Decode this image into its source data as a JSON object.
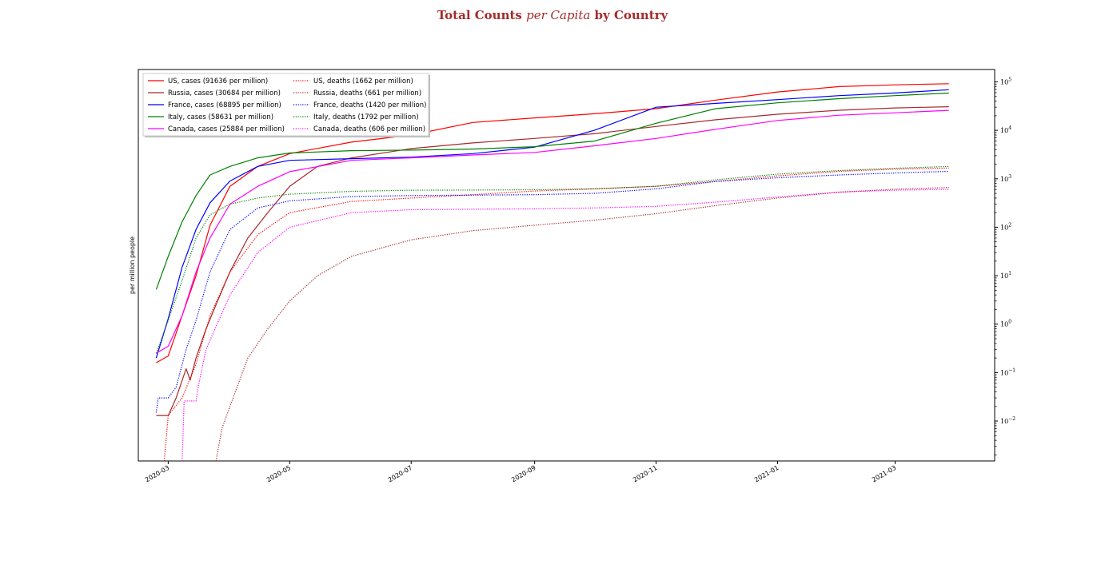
{
  "chart_data": {
    "type": "line",
    "title_parts": [
      "Total Counts ",
      "per Capita",
      " by Country"
    ],
    "ylabel": "per million people",
    "yscale": "log",
    "y_axis_side": "right",
    "ylim": [
      0.0015,
      180000
    ],
    "xlim": [
      "2020-02-15",
      "2021-04-20"
    ],
    "x_ticks": [
      "2020-03",
      "2020-05",
      "2020-07",
      "2020-09",
      "2020-11",
      "2021-01",
      "2021-03"
    ],
    "x_tick_dates": [
      "2020-03-01",
      "2020-05-01",
      "2020-07-01",
      "2020-09-01",
      "2020-11-01",
      "2021-01-01",
      "2021-03-01"
    ],
    "y_ticks": [
      {
        "value": 0.01,
        "base": "10",
        "exp": "−2"
      },
      {
        "value": 0.1,
        "base": "10",
        "exp": "−1"
      },
      {
        "value": 1,
        "base": "10",
        "exp": "0"
      },
      {
        "value": 10,
        "base": "10",
        "exp": "1"
      },
      {
        "value": 100,
        "base": "10",
        "exp": "2"
      },
      {
        "value": 1000,
        "base": "10",
        "exp": "3"
      },
      {
        "value": 10000,
        "base": "10",
        "exp": "4"
      },
      {
        "value": 100000,
        "base": "10",
        "exp": "5"
      }
    ],
    "legend_position": "upper-left",
    "series": [
      {
        "name": "US, cases (91636 per million)",
        "color": "#ff0000",
        "style": "solid",
        "points": [
          [
            "2020-02-24",
            0.16
          ],
          [
            "2020-03-01",
            0.22
          ],
          [
            "2020-03-08",
            1.5
          ],
          [
            "2020-03-15",
            10
          ],
          [
            "2020-03-22",
            110
          ],
          [
            "2020-04-01",
            700
          ],
          [
            "2020-04-15",
            1800
          ],
          [
            "2020-05-01",
            3300
          ],
          [
            "2020-06-01",
            5700
          ],
          [
            "2020-07-01",
            8000
          ],
          [
            "2020-08-01",
            14500
          ],
          [
            "2020-09-01",
            18000
          ],
          [
            "2020-10-01",
            22000
          ],
          [
            "2020-11-01",
            28000
          ],
          [
            "2020-12-01",
            42000
          ],
          [
            "2021-01-01",
            62000
          ],
          [
            "2021-02-01",
            80000
          ],
          [
            "2021-03-01",
            87000
          ],
          [
            "2021-03-28",
            91636
          ]
        ]
      },
      {
        "name": "Russia, cases (30684 per million)",
        "color": "#a52a2a",
        "style": "solid",
        "points": [
          [
            "2020-02-24",
            0.013
          ],
          [
            "2020-03-01",
            0.013
          ],
          [
            "2020-03-05",
            0.03
          ],
          [
            "2020-03-10",
            0.12
          ],
          [
            "2020-03-12",
            0.07
          ],
          [
            "2020-03-15",
            0.2
          ],
          [
            "2020-03-20",
            0.8
          ],
          [
            "2020-03-25",
            2.5
          ],
          [
            "2020-04-01",
            12
          ],
          [
            "2020-04-10",
            60
          ],
          [
            "2020-04-20",
            200
          ],
          [
            "2020-05-01",
            700
          ],
          [
            "2020-05-15",
            1800
          ],
          [
            "2020-06-01",
            2700
          ],
          [
            "2020-07-01",
            4200
          ],
          [
            "2020-08-01",
            5500
          ],
          [
            "2020-09-01",
            6800
          ],
          [
            "2020-10-01",
            8500
          ],
          [
            "2020-11-01",
            12000
          ],
          [
            "2020-12-01",
            16500
          ],
          [
            "2021-01-01",
            21500
          ],
          [
            "2021-02-01",
            26000
          ],
          [
            "2021-03-01",
            29000
          ],
          [
            "2021-03-28",
            30684
          ]
        ]
      },
      {
        "name": "France, cases (68895 per million)",
        "color": "#0000ff",
        "style": "solid",
        "points": [
          [
            "2020-02-24",
            0.2
          ],
          [
            "2020-03-01",
            1.3
          ],
          [
            "2020-03-08",
            15
          ],
          [
            "2020-03-15",
            90
          ],
          [
            "2020-03-22",
            320
          ],
          [
            "2020-04-01",
            900
          ],
          [
            "2020-04-15",
            1800
          ],
          [
            "2020-05-01",
            2400
          ],
          [
            "2020-06-01",
            2600
          ],
          [
            "2020-07-01",
            2800
          ],
          [
            "2020-08-01",
            3300
          ],
          [
            "2020-09-01",
            4500
          ],
          [
            "2020-10-01",
            10000
          ],
          [
            "2020-11-01",
            30000
          ],
          [
            "2020-12-01",
            36000
          ],
          [
            "2021-01-01",
            43000
          ],
          [
            "2021-02-01",
            52000
          ],
          [
            "2021-03-01",
            59000
          ],
          [
            "2021-03-28",
            68895
          ]
        ]
      },
      {
        "name": "Italy, cases (58631 per million)",
        "color": "#008000",
        "style": "solid",
        "points": [
          [
            "2020-02-24",
            5.2
          ],
          [
            "2020-03-01",
            25
          ],
          [
            "2020-03-08",
            130
          ],
          [
            "2020-03-15",
            450
          ],
          [
            "2020-03-22",
            1200
          ],
          [
            "2020-04-01",
            1800
          ],
          [
            "2020-04-15",
            2700
          ],
          [
            "2020-05-01",
            3400
          ],
          [
            "2020-06-01",
            3800
          ],
          [
            "2020-07-01",
            3900
          ],
          [
            "2020-08-01",
            4100
          ],
          [
            "2020-09-01",
            4600
          ],
          [
            "2020-10-01",
            6000
          ],
          [
            "2020-11-01",
            14000
          ],
          [
            "2020-12-01",
            28000
          ],
          [
            "2021-01-01",
            37000
          ],
          [
            "2021-02-01",
            45000
          ],
          [
            "2021-03-01",
            52000
          ],
          [
            "2021-03-28",
            58631
          ]
        ]
      },
      {
        "name": "Canada, cases (25884 per million)",
        "color": "#ff00ff",
        "style": "solid",
        "points": [
          [
            "2020-02-24",
            0.25
          ],
          [
            "2020-03-01",
            0.35
          ],
          [
            "2020-03-08",
            1.5
          ],
          [
            "2020-03-15",
            12
          ],
          [
            "2020-03-22",
            60
          ],
          [
            "2020-04-01",
            300
          ],
          [
            "2020-04-15",
            700
          ],
          [
            "2020-05-01",
            1400
          ],
          [
            "2020-06-01",
            2400
          ],
          [
            "2020-07-01",
            2700
          ],
          [
            "2020-08-01",
            3100
          ],
          [
            "2020-09-01",
            3500
          ],
          [
            "2020-10-01",
            4800
          ],
          [
            "2020-11-01",
            6800
          ],
          [
            "2020-12-01",
            10500
          ],
          [
            "2021-01-01",
            16000
          ],
          [
            "2021-02-01",
            20500
          ],
          [
            "2021-03-01",
            23000
          ],
          [
            "2021-03-28",
            25884
          ]
        ]
      },
      {
        "name": "US, deaths (1662 per million)",
        "color": "#ff0000",
        "style": "dotted",
        "points": [
          [
            "2020-02-28",
            0.0015
          ],
          [
            "2020-03-01",
            0.013
          ],
          [
            "2020-03-08",
            0.03
          ],
          [
            "2020-03-15",
            0.15
          ],
          [
            "2020-03-22",
            1.5
          ],
          [
            "2020-04-01",
            12
          ],
          [
            "2020-04-15",
            70
          ],
          [
            "2020-05-01",
            200
          ],
          [
            "2020-06-01",
            340
          ],
          [
            "2020-07-01",
            400
          ],
          [
            "2020-08-01",
            470
          ],
          [
            "2020-09-01",
            560
          ],
          [
            "2020-10-01",
            620
          ],
          [
            "2020-11-01",
            700
          ],
          [
            "2020-12-01",
            880
          ],
          [
            "2021-01-01",
            1150
          ],
          [
            "2021-02-01",
            1420
          ],
          [
            "2021-03-01",
            1580
          ],
          [
            "2021-03-28",
            1662
          ]
        ]
      },
      {
        "name": "Russia, deaths (661 per million)",
        "color": "#a52a2a",
        "style": "dotted",
        "points": [
          [
            "2020-03-25",
            0.0015
          ],
          [
            "2020-03-28",
            0.007
          ],
          [
            "2020-04-01",
            0.02
          ],
          [
            "2020-04-10",
            0.2
          ],
          [
            "2020-04-20",
            0.8
          ],
          [
            "2020-05-01",
            3
          ],
          [
            "2020-05-15",
            10
          ],
          [
            "2020-06-01",
            25
          ],
          [
            "2020-07-01",
            55
          ],
          [
            "2020-08-01",
            85
          ],
          [
            "2020-09-01",
            110
          ],
          [
            "2020-10-01",
            140
          ],
          [
            "2020-11-01",
            190
          ],
          [
            "2020-12-01",
            280
          ],
          [
            "2021-01-01",
            400
          ],
          [
            "2021-02-01",
            530
          ],
          [
            "2021-03-01",
            610
          ],
          [
            "2021-03-28",
            661
          ]
        ]
      },
      {
        "name": "France, deaths (1420 per million)",
        "color": "#0000ff",
        "style": "dotted",
        "points": [
          [
            "2020-02-24",
            0.015
          ],
          [
            "2020-02-25",
            0.03
          ],
          [
            "2020-03-01",
            0.03
          ],
          [
            "2020-03-05",
            0.05
          ],
          [
            "2020-03-10",
            0.3
          ],
          [
            "2020-03-15",
            1.2
          ],
          [
            "2020-03-22",
            12
          ],
          [
            "2020-04-01",
            90
          ],
          [
            "2020-04-15",
            250
          ],
          [
            "2020-05-01",
            350
          ],
          [
            "2020-06-01",
            430
          ],
          [
            "2020-07-01",
            450
          ],
          [
            "2020-08-01",
            460
          ],
          [
            "2020-09-01",
            470
          ],
          [
            "2020-10-01",
            500
          ],
          [
            "2020-11-01",
            620
          ],
          [
            "2020-12-01",
            880
          ],
          [
            "2021-01-01",
            1050
          ],
          [
            "2021-02-01",
            1200
          ],
          [
            "2021-03-01",
            1320
          ],
          [
            "2021-03-28",
            1420
          ]
        ]
      },
      {
        "name": "Italy, deaths (1792 per million)",
        "color": "#008000",
        "style": "dotted",
        "points": [
          [
            "2020-02-24",
            0.25
          ],
          [
            "2020-03-01",
            1.2
          ],
          [
            "2020-03-08",
            8
          ],
          [
            "2020-03-15",
            60
          ],
          [
            "2020-03-22",
            180
          ],
          [
            "2020-04-01",
            300
          ],
          [
            "2020-04-15",
            400
          ],
          [
            "2020-05-01",
            480
          ],
          [
            "2020-06-01",
            550
          ],
          [
            "2020-07-01",
            580
          ],
          [
            "2020-08-01",
            585
          ],
          [
            "2020-09-01",
            595
          ],
          [
            "2020-10-01",
            620
          ],
          [
            "2020-11-01",
            700
          ],
          [
            "2020-12-01",
            950
          ],
          [
            "2021-01-01",
            1250
          ],
          [
            "2021-02-01",
            1480
          ],
          [
            "2021-03-01",
            1650
          ],
          [
            "2021-03-28",
            1792
          ]
        ]
      },
      {
        "name": "Canada, deaths (606 per million)",
        "color": "#ff00ff",
        "style": "dotted",
        "points": [
          [
            "2020-03-08",
            0.0015
          ],
          [
            "2020-03-09",
            0.026
          ],
          [
            "2020-03-15",
            0.026
          ],
          [
            "2020-03-16",
            0.05
          ],
          [
            "2020-03-20",
            0.3
          ],
          [
            "2020-04-01",
            4
          ],
          [
            "2020-04-15",
            30
          ],
          [
            "2020-05-01",
            100
          ],
          [
            "2020-06-01",
            200
          ],
          [
            "2020-07-01",
            230
          ],
          [
            "2020-08-01",
            235
          ],
          [
            "2020-09-01",
            240
          ],
          [
            "2020-10-01",
            250
          ],
          [
            "2020-11-01",
            270
          ],
          [
            "2020-12-01",
            330
          ],
          [
            "2021-01-01",
            420
          ],
          [
            "2021-02-01",
            530
          ],
          [
            "2021-03-01",
            580
          ],
          [
            "2021-03-28",
            606
          ]
        ]
      }
    ],
    "legend_order": [
      0,
      1,
      2,
      3,
      4,
      5,
      6,
      7,
      8,
      9
    ]
  }
}
